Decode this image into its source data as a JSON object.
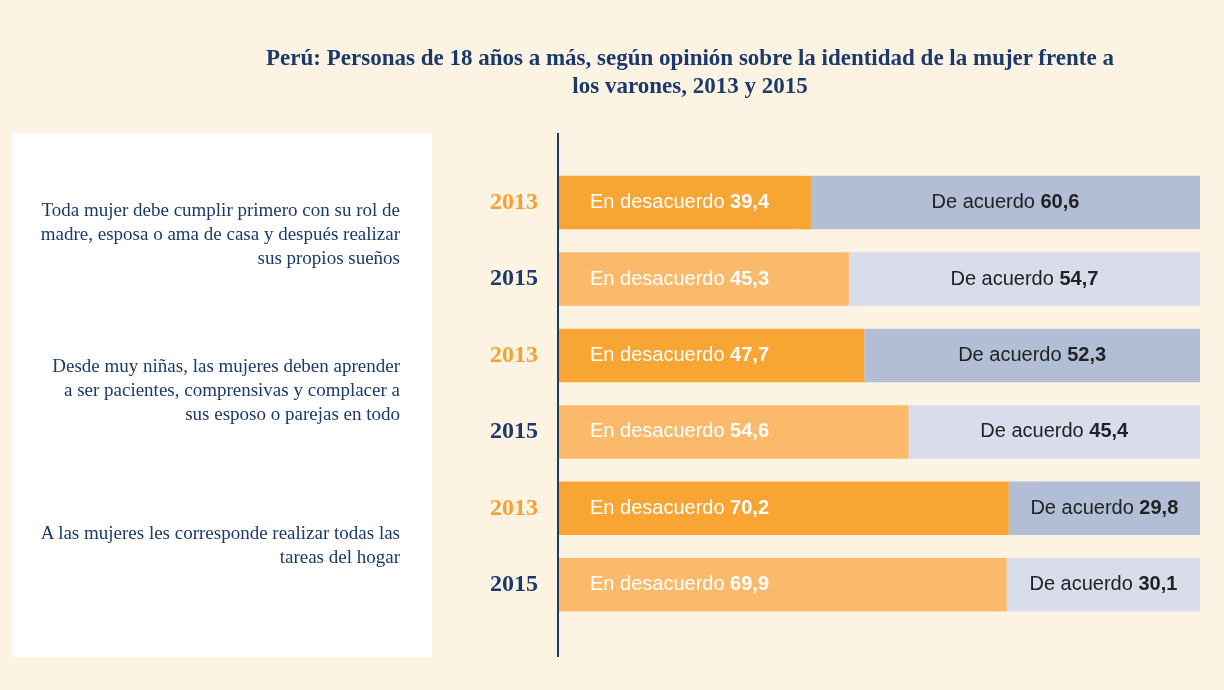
{
  "chart_data": {
    "type": "bar",
    "orientation": "horizontal",
    "stacked": true,
    "title": "Perú: Personas de 18 años a más, según opinión sobre la identidad de la mujer frente a los varones, 2013 y 2015",
    "categories": [
      "2013",
      "2015",
      "2013",
      "2015",
      "2013",
      "2015"
    ],
    "series": [
      {
        "name": "En desacuerdo",
        "colors": [
          "#f8a533",
          "#fbba6b",
          "#f8a533",
          "#fbba6b",
          "#f8a533",
          "#fbba6b"
        ],
        "values": [
          39.4,
          45.3,
          47.7,
          54.6,
          70.2,
          69.9
        ],
        "value_labels": [
          "39,4",
          "45,3",
          "47,7",
          "54,6",
          "70,2",
          "69,9"
        ]
      },
      {
        "name": "De acuerdo",
        "colors": [
          "#b1bed6",
          "#d8dceb",
          "#b1bed6",
          "#d8dceb",
          "#b1bed6",
          "#d8dceb"
        ],
        "values": [
          60.6,
          54.7,
          52.3,
          45.4,
          29.8,
          30.1
        ],
        "value_labels": [
          "60,6",
          "54,7",
          "52,3",
          "45,4",
          "29,8",
          "30,1"
        ]
      }
    ],
    "xlim": [
      0,
      100
    ],
    "tick_labels": "y",
    "legend": false,
    "grid": false,
    "annotations": [
      "Toda mujer debe cumplir primero con su rol de madre, esposa o ama de casa y después realizar sus propios sueños",
      "Desde muy niñas, las mujeres deben aprender a ser pacientes, comprensivas y complacer a sus esposo o parejas en todo",
      "A las mujeres les corresponde realizar todas las tareas del hogar"
    ]
  }
}
